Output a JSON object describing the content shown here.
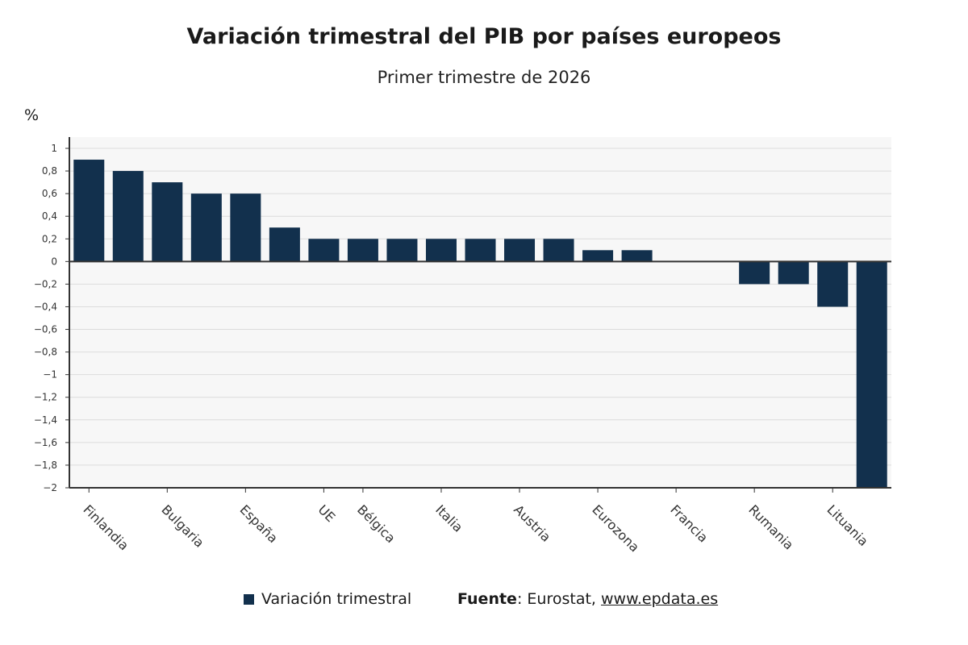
{
  "header": {
    "title": "Variación trimestral del PIB por países europeos",
    "subtitle": "Primer trimestre de 2026",
    "ylabel": "%"
  },
  "legend": {
    "label": "Variación trimestral"
  },
  "source": {
    "label": "Fuente",
    "colon": ": ",
    "text": "Eurostat, ",
    "link": "www.epdata.es"
  },
  "colors": {
    "bar": "#12304d",
    "plot_bg": "#f7f7f7",
    "grid": "#dcdcdc",
    "axis": "#333333"
  },
  "chart_data": {
    "type": "bar",
    "title": "Variación trimestral del PIB por países europeos",
    "subtitle": "Primer trimestre de 2026",
    "ylabel": "%",
    "ylim": [
      -2,
      1
    ],
    "yticks": [
      1,
      0.8,
      0.6,
      0.4,
      0.2,
      0,
      -0.2,
      -0.4,
      -0.6,
      -0.8,
      -1,
      -1.2,
      -1.4,
      -1.6,
      -1.8,
      -2
    ],
    "ytick_labels": [
      "1",
      "0,8",
      "0,6",
      "0,4",
      "0,2",
      "0",
      "−0,2",
      "−0,4",
      "−0,6",
      "−0,8",
      "−1",
      "−1,2",
      "−1,4",
      "−1,6",
      "−1,8",
      "−2"
    ],
    "grid": true,
    "values": [
      0.9,
      0.8,
      0.7,
      0.6,
      0.6,
      0.3,
      0.2,
      0.2,
      0.2,
      0.2,
      0.2,
      0.2,
      0.2,
      0.1,
      0.1,
      0,
      0,
      -0.2,
      -0.2,
      -0.4,
      -2.0
    ],
    "x_tick_labels": [
      {
        "index": 0,
        "label": "Finlandia"
      },
      {
        "index": 2,
        "label": "Bulgaria"
      },
      {
        "index": 4,
        "label": "España"
      },
      {
        "index": 6,
        "label": "UE"
      },
      {
        "index": 7,
        "label": "Bélgica"
      },
      {
        "index": 9,
        "label": "Italia"
      },
      {
        "index": 11,
        "label": "Austria"
      },
      {
        "index": 13,
        "label": "Eurozona"
      },
      {
        "index": 15,
        "label": "Francia"
      },
      {
        "index": 17,
        "label": "Rumania"
      },
      {
        "index": 19,
        "label": "Lituania"
      }
    ],
    "series": [
      {
        "name": "Variación trimestral"
      }
    ],
    "legend_position": "bottom"
  }
}
